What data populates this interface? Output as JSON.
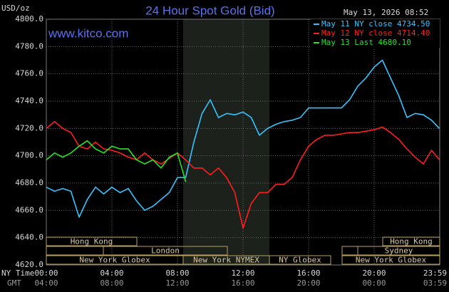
{
  "chart_data": {
    "type": "line",
    "title": "24 Hour Spot Gold (Bid)",
    "timestamp": "May 13, 2026 08:52",
    "website": "www.kitco.com",
    "y_label": "USD/oz",
    "x_label": "NY Time",
    "x2_label": "GMT",
    "grid": true,
    "legend_position": "top-right",
    "xlim": [
      0,
      24
    ],
    "xticks": [
      {
        "value": 0,
        "label": "00:00"
      },
      {
        "value": 4,
        "label": "04:00"
      },
      {
        "value": 8,
        "label": "08:00"
      },
      {
        "value": 12,
        "label": "12:00"
      },
      {
        "value": 16,
        "label": "16:00"
      },
      {
        "value": 20,
        "label": "20:00"
      },
      {
        "value": 23.983,
        "label": "23:59"
      }
    ],
    "x2ticks": [
      "04:00",
      "08:00",
      "12:00",
      "16:00",
      "20:00",
      "00:00",
      "03:59"
    ],
    "ylim": [
      4620,
      4800
    ],
    "yticks": [
      {
        "value": 4620,
        "label": "4620.0"
      },
      {
        "value": 4640,
        "label": "4640.0"
      },
      {
        "value": 4660,
        "label": "4660.0"
      },
      {
        "value": 4680,
        "label": "4680.0"
      },
      {
        "value": 4700,
        "label": "4700.0"
      },
      {
        "value": 4720,
        "label": "4720.0"
      },
      {
        "value": 4740,
        "label": "4740.0"
      },
      {
        "value": 4760,
        "label": "4760.0"
      },
      {
        "value": 4780,
        "label": "4780.0"
      },
      {
        "value": 4800,
        "label": "4800.0"
      }
    ],
    "sessions": [
      "Hong Kong",
      "London",
      "New York Globex",
      "New York NYMEX",
      "NY Globex",
      "Hong Kong",
      "Sydney",
      "New York Globex"
    ],
    "x": [
      0,
      0.5,
      1,
      1.5,
      2,
      2.5,
      3,
      3.5,
      4,
      4.5,
      5,
      5.5,
      6,
      6.5,
      7,
      7.5,
      8,
      8.5,
      9,
      9.5,
      10,
      10.5,
      11,
      11.5,
      12,
      12.5,
      13,
      13.5,
      14,
      14.5,
      15,
      15.5,
      16,
      16.5,
      17,
      17.5,
      18,
      18.5,
      19,
      19.5,
      20,
      20.5,
      21,
      21.5,
      22,
      22.5,
      23,
      23.5,
      23.98
    ],
    "series": [
      {
        "name": "May 11 NY close 4734.50",
        "color": "#36c4ff",
        "values": [
          4677,
          4674,
          4676,
          4674,
          4655,
          4668,
          4677,
          4672,
          4677,
          4673,
          4676,
          4667,
          4660,
          4663,
          4668,
          4673,
          4684,
          4684,
          4710,
          4731,
          4741,
          4728,
          4731,
          4730,
          4732,
          4728,
          4715,
          4720,
          4723,
          4725,
          4726,
          4728,
          4735,
          4735,
          4735,
          4735,
          4735,
          4741,
          4751,
          4757,
          4765,
          4770,
          4757,
          4744,
          4728,
          4731,
          4730,
          4726,
          4720
        ]
      },
      {
        "name": "May 12 NY close 4714.40",
        "color": "#ff1e1e",
        "values": [
          4720,
          4725,
          4720,
          4717,
          4707,
          4705,
          4710,
          4705,
          4704,
          4702,
          4699,
          4697,
          4702,
          4697,
          4694,
          4698,
          4702,
          4697,
          4691,
          4691,
          4686,
          4691,
          4684,
          4673,
          4647,
          4665,
          4673,
          4673,
          4679,
          4679,
          4684,
          4697,
          4707,
          4712,
          4715,
          4715,
          4716,
          4717,
          4717,
          4718,
          4719,
          4721,
          4717,
          4712,
          4705,
          4699,
          4694,
          4704,
          4697
        ]
      },
      {
        "name": "May 13 Last 4680.10",
        "color": "#22e622",
        "values": [
          4697,
          4702,
          4699,
          4702,
          4707,
          4711,
          4705,
          4702,
          4707,
          4705,
          4705,
          4697,
          4694,
          4697,
          4691,
          4699,
          4702,
          4681,
          null,
          null,
          null,
          null,
          null,
          null,
          null,
          null,
          null,
          null,
          null,
          null,
          null,
          null,
          null,
          null,
          null,
          null,
          null,
          null,
          null,
          null,
          null,
          null,
          null,
          null,
          null,
          null,
          null,
          null,
          null
        ]
      }
    ]
  }
}
